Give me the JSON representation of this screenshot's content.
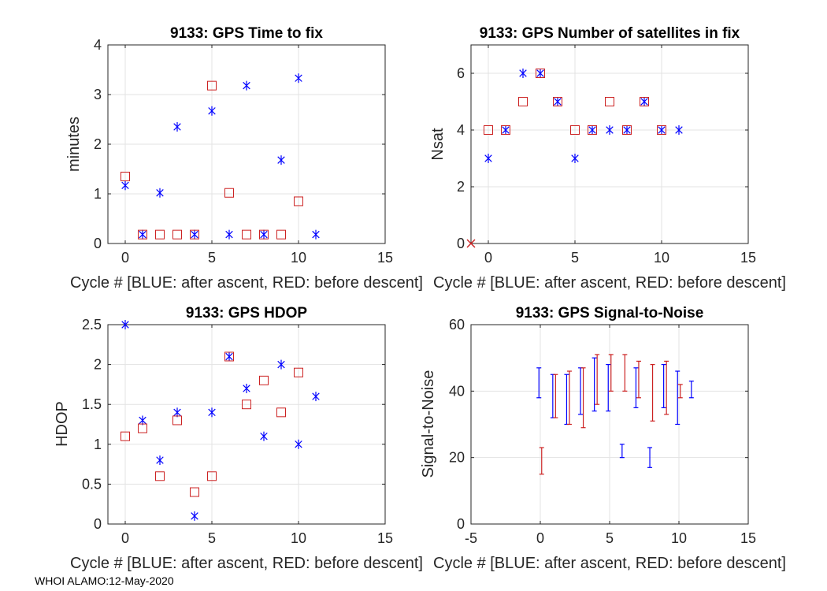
{
  "footer": "WHOI ALAMO:12-May-2020",
  "colors": {
    "blue": "#0000ff",
    "red": "#cc2222",
    "grid": "#e3e3e3",
    "axis": "#262626"
  },
  "chart_data": [
    {
      "id": "ttf",
      "type": "scatter",
      "title": "9133: GPS Time to fix",
      "xlabel": "Cycle #  [BLUE: after ascent, RED: before descent]",
      "ylabel": "minutes",
      "xlim": [
        -1,
        15
      ],
      "ylim": [
        0,
        4
      ],
      "xticks": [
        0,
        5,
        10,
        15
      ],
      "yticks": [
        0,
        1,
        2,
        3,
        4
      ],
      "series": [
        {
          "name": "after ascent",
          "color": "blue",
          "marker": "star",
          "x": [
            0,
            1,
            2,
            3,
            4,
            5,
            6,
            7,
            8,
            9,
            10,
            11
          ],
          "y": [
            1.17,
            0.18,
            1.02,
            2.35,
            0.18,
            2.67,
            0.18,
            3.18,
            0.18,
            1.68,
            3.33,
            0.18
          ]
        },
        {
          "name": "before descent",
          "color": "red",
          "marker": "square",
          "x": [
            0,
            1,
            2,
            3,
            4,
            5,
            6,
            7,
            8,
            9,
            10
          ],
          "y": [
            1.35,
            0.18,
            0.18,
            0.18,
            0.18,
            3.18,
            1.02,
            0.18,
            0.18,
            0.18,
            0.85
          ]
        }
      ]
    },
    {
      "id": "nsat",
      "type": "scatter",
      "title": "9133: GPS Number of satellites in fix",
      "xlabel": "Cycle #  [BLUE: after ascent, RED: before descent]",
      "ylabel": "Nsat",
      "xlim": [
        -1,
        15
      ],
      "ylim": [
        0,
        7
      ],
      "xticks": [
        0,
        5,
        10,
        15
      ],
      "yticks": [
        0,
        2,
        4,
        6
      ],
      "series": [
        {
          "name": "after ascent",
          "color": "blue",
          "marker": "star",
          "x": [
            0,
            1,
            2,
            3,
            4,
            5,
            6,
            7,
            8,
            9,
            10,
            11
          ],
          "y": [
            3,
            4,
            6,
            6,
            5,
            3,
            4,
            4,
            4,
            5,
            4,
            4
          ]
        },
        {
          "name": "before descent",
          "color": "red",
          "marker": "square",
          "x": [
            0,
            1,
            2,
            3,
            4,
            5,
            6,
            7,
            8,
            9,
            10
          ],
          "y": [
            4,
            4,
            5,
            6,
            5,
            4,
            4,
            5,
            4,
            5,
            4
          ]
        },
        {
          "name": "origin",
          "color": "red",
          "marker": "x",
          "x": [
            -1
          ],
          "y": [
            0
          ]
        }
      ]
    },
    {
      "id": "hdop",
      "type": "scatter",
      "title": "9133: GPS HDOP",
      "xlabel": "Cycle #  [BLUE: after ascent, RED: before descent]",
      "ylabel": "HDOP",
      "xlim": [
        -1,
        15
      ],
      "ylim": [
        0,
        2.5
      ],
      "xticks": [
        0,
        5,
        10,
        15
      ],
      "yticks": [
        0,
        0.5,
        1,
        1.5,
        2,
        2.5
      ],
      "series": [
        {
          "name": "after ascent",
          "color": "blue",
          "marker": "star",
          "x": [
            0,
            1,
            2,
            3,
            4,
            5,
            6,
            7,
            8,
            9,
            10,
            11
          ],
          "y": [
            2.5,
            1.3,
            0.8,
            1.4,
            0.1,
            1.4,
            2.1,
            1.7,
            1.1,
            2.0,
            1.0,
            1.6
          ]
        },
        {
          "name": "before descent",
          "color": "red",
          "marker": "square",
          "x": [
            0,
            1,
            2,
            3,
            4,
            5,
            6,
            7,
            8,
            9,
            10
          ],
          "y": [
            1.1,
            1.2,
            0.6,
            1.3,
            0.4,
            0.6,
            2.1,
            1.5,
            1.8,
            1.4,
            1.9
          ]
        }
      ]
    },
    {
      "id": "snr",
      "type": "errorbar",
      "title": "9133: GPS Signal-to-Noise",
      "xlabel": "Cycle #  [BLUE: after ascent, RED: before descent]",
      "ylabel": "Signal-to-Noise",
      "xlim": [
        -5,
        15
      ],
      "ylim": [
        0,
        60
      ],
      "xticks": [
        -5,
        0,
        5,
        10,
        15
      ],
      "yticks": [
        0,
        20,
        40,
        60
      ],
      "series": [
        {
          "name": "after ascent",
          "color": "blue",
          "offset": -0.1,
          "bars": [
            {
              "x": 0,
              "low": 38,
              "high": 47
            },
            {
              "x": 1,
              "low": 32,
              "high": 45
            },
            {
              "x": 2,
              "low": 30,
              "high": 45
            },
            {
              "x": 3,
              "low": 33,
              "high": 47
            },
            {
              "x": 4,
              "low": 34,
              "high": 50
            },
            {
              "x": 5,
              "low": 34,
              "high": 48
            },
            {
              "x": 6,
              "low": 20,
              "high": 24
            },
            {
              "x": 7,
              "low": 35,
              "high": 47
            },
            {
              "x": 8,
              "low": 17,
              "high": 23
            },
            {
              "x": 9,
              "low": 35,
              "high": 48
            },
            {
              "x": 10,
              "low": 30,
              "high": 46
            },
            {
              "x": 11,
              "low": 38,
              "high": 43
            }
          ]
        },
        {
          "name": "before descent",
          "color": "red",
          "offset": 0.1,
          "bars": [
            {
              "x": 0,
              "low": 15,
              "high": 23
            },
            {
              "x": 1,
              "low": 32,
              "high": 45
            },
            {
              "x": 2,
              "low": 30,
              "high": 46
            },
            {
              "x": 3,
              "low": 29,
              "high": 47
            },
            {
              "x": 4,
              "low": 36,
              "high": 51
            },
            {
              "x": 5,
              "low": 40,
              "high": 51
            },
            {
              "x": 6,
              "low": 40,
              "high": 51
            },
            {
              "x": 7,
              "low": 38,
              "high": 49
            },
            {
              "x": 8,
              "low": 31,
              "high": 48
            },
            {
              "x": 9,
              "low": 33,
              "high": 49
            },
            {
              "x": 10,
              "low": 38,
              "high": 42
            }
          ]
        }
      ]
    }
  ]
}
